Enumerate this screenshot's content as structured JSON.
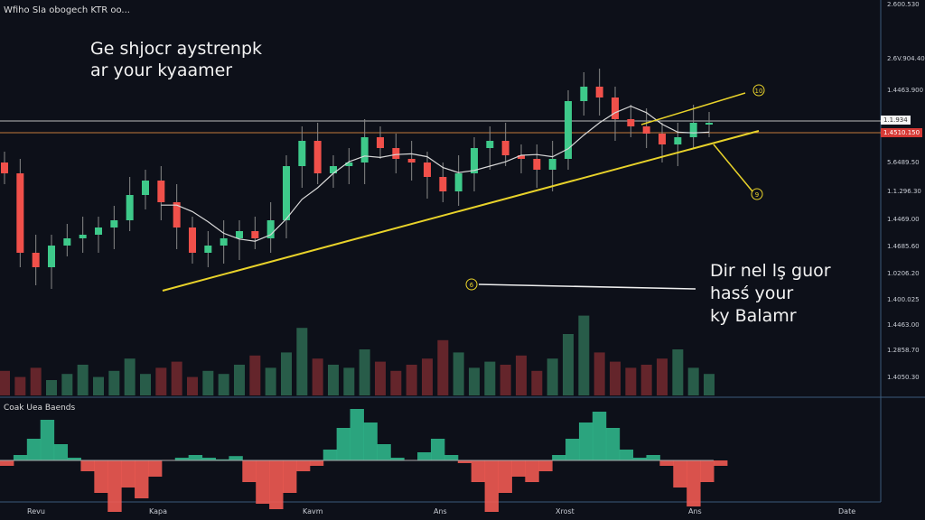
{
  "header": {
    "title": "Wfiho Sla obogech KTR oo...",
    "headline": [
      "Ge shjocr aystrenpk",
      "ar your kyaamer"
    ]
  },
  "annotation": {
    "lines": [
      "Dir nel lş guor",
      "hasś your",
      "ky Balamr"
    ]
  },
  "markers": {
    "upper": "10",
    "lower": "9",
    "left": "6"
  },
  "price_tags": {
    "white": "1.1.934",
    "red": "1.4510.150"
  },
  "colors": {
    "background": "#0d1019",
    "up": "#3ec98a",
    "down": "#f0504a",
    "trendline": "#e8d22a",
    "ma": "#d8d8d8",
    "grid_axis": "#3a5a7a",
    "level_orange": "#c27a3a"
  },
  "chart_data": [
    {
      "type": "candlestick",
      "title": "",
      "ylim": [
        0,
        110
      ],
      "y_tick_labels": [
        "2.600.530",
        "2.6V.904.40",
        "1.4463.900",
        "5.6489.50",
        "1.1.296.30",
        "1.4469.00",
        "1.4685.60",
        "1.0206.20",
        "1.400.025",
        "1.4463.00",
        "1.2858.70",
        "1.4050.30"
      ],
      "x_tick_labels": [
        "Revu",
        "Kapa",
        "Kavm",
        "Ans",
        "Xrost",
        "Ans",
        "Date"
      ],
      "closes": [
        62,
        40,
        36,
        42,
        44,
        45,
        47,
        49,
        56,
        60,
        54,
        47,
        40,
        42,
        44,
        46,
        44,
        49,
        64,
        71,
        62,
        64,
        65,
        72,
        69,
        66,
        65,
        61,
        57,
        62,
        69,
        71,
        67,
        66,
        63,
        66,
        82,
        86,
        83,
        77,
        75,
        73,
        70,
        72,
        76,
        76
      ],
      "volume": [
        8,
        6,
        9,
        5,
        7,
        10,
        6,
        8,
        12,
        7,
        9,
        11,
        6,
        8,
        7,
        10,
        13,
        9,
        14,
        22,
        12,
        10,
        9,
        15,
        11,
        8,
        10,
        12,
        18,
        14,
        9,
        11,
        10,
        13,
        8,
        12,
        20,
        26,
        14,
        11,
        9,
        10,
        12,
        15,
        9,
        7
      ]
    },
    {
      "type": "area",
      "title": "Coak Uea Baends",
      "ylim": [
        -100,
        100
      ],
      "values": [
        -10,
        10,
        40,
        75,
        30,
        5,
        -20,
        -60,
        -95,
        -50,
        -70,
        -30,
        0,
        5,
        10,
        5,
        2,
        8,
        -40,
        -80,
        -90,
        -60,
        -20,
        -10,
        20,
        60,
        95,
        70,
        30,
        5,
        0,
        15,
        40,
        10,
        -5,
        -40,
        -95,
        -60,
        -30,
        -40,
        -20,
        10,
        40,
        70,
        90,
        60,
        20,
        5,
        10,
        -10,
        -50,
        -85,
        -40,
        -10
      ]
    }
  ]
}
